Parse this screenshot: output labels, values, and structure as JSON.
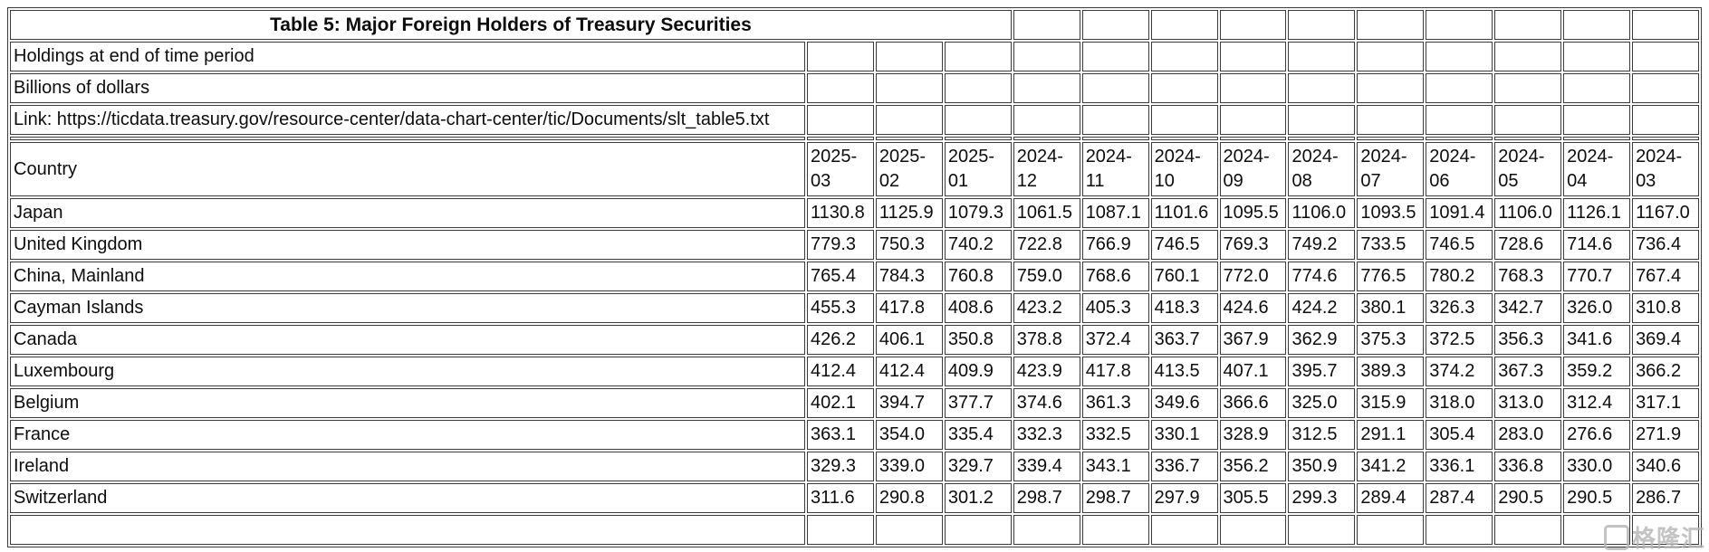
{
  "table": {
    "title": "Table 5: Major Foreign Holders of Treasury Securities",
    "subtitle_holdings": "Holdings at end of time period",
    "subtitle_units": "Billions of dollars",
    "link": "Link: https://ticdata.treasury.gov/resource-center/data-chart-center/tic/Documents/slt_table5.txt",
    "country_header": "Country",
    "periods": [
      "2025-03",
      "2025-02",
      "2025-01",
      "2024-12",
      "2024-11",
      "2024-10",
      "2024-09",
      "2024-08",
      "2024-07",
      "2024-06",
      "2024-05",
      "2024-04",
      "2024-03"
    ],
    "rows": [
      {
        "country": "Japan",
        "values": [
          "1130.8",
          "1125.9",
          "1079.3",
          "1061.5",
          "1087.1",
          "1101.6",
          "1095.5",
          "1106.0",
          "1093.5",
          "1091.4",
          "1106.0",
          "1126.1",
          "1167.0"
        ]
      },
      {
        "country": "United Kingdom",
        "values": [
          "779.3",
          "750.3",
          "740.2",
          "722.8",
          "766.9",
          "746.5",
          "769.3",
          "749.2",
          "733.5",
          "746.5",
          "728.6",
          "714.6",
          "736.4"
        ]
      },
      {
        "country": "China, Mainland",
        "values": [
          "765.4",
          "784.3",
          "760.8",
          "759.0",
          "768.6",
          "760.1",
          "772.0",
          "774.6",
          "776.5",
          "780.2",
          "768.3",
          "770.7",
          "767.4"
        ]
      },
      {
        "country": "Cayman Islands",
        "values": [
          "455.3",
          "417.8",
          "408.6",
          "423.2",
          "405.3",
          "418.3",
          "424.6",
          "424.2",
          "380.1",
          "326.3",
          "342.7",
          "326.0",
          "310.8"
        ]
      },
      {
        "country": "Canada",
        "values": [
          "426.2",
          "406.1",
          "350.8",
          "378.8",
          "372.4",
          "363.7",
          "367.9",
          "362.9",
          "375.3",
          "372.5",
          "356.3",
          "341.6",
          "369.4"
        ]
      },
      {
        "country": "Luxembourg",
        "values": [
          "412.4",
          "412.4",
          "409.9",
          "423.9",
          "417.8",
          "413.5",
          "407.1",
          "395.7",
          "389.3",
          "374.2",
          "367.3",
          "359.2",
          "366.2"
        ]
      },
      {
        "country": "Belgium",
        "values": [
          "402.1",
          "394.7",
          "377.7",
          "374.6",
          "361.3",
          "349.6",
          "366.6",
          "325.0",
          "315.9",
          "318.0",
          "313.0",
          "312.4",
          "317.1"
        ]
      },
      {
        "country": "France",
        "values": [
          "363.1",
          "354.0",
          "335.4",
          "332.3",
          "332.5",
          "330.1",
          "328.9",
          "312.5",
          "291.1",
          "305.4",
          "283.0",
          "276.6",
          "271.9"
        ]
      },
      {
        "country": "Ireland",
        "values": [
          "329.3",
          "339.0",
          "329.7",
          "339.4",
          "343.1",
          "336.7",
          "356.2",
          "350.9",
          "341.2",
          "336.1",
          "336.8",
          "330.0",
          "340.6"
        ]
      },
      {
        "country": "Switzerland",
        "values": [
          "311.6",
          "290.8",
          "301.2",
          "298.7",
          "298.7",
          "297.9",
          "305.5",
          "299.3",
          "289.4",
          "287.4",
          "290.5",
          "290.5",
          "286.7"
        ]
      }
    ]
  },
  "watermark": {
    "text": "格隆汇",
    "color_hex": "#b5b5b5"
  }
}
